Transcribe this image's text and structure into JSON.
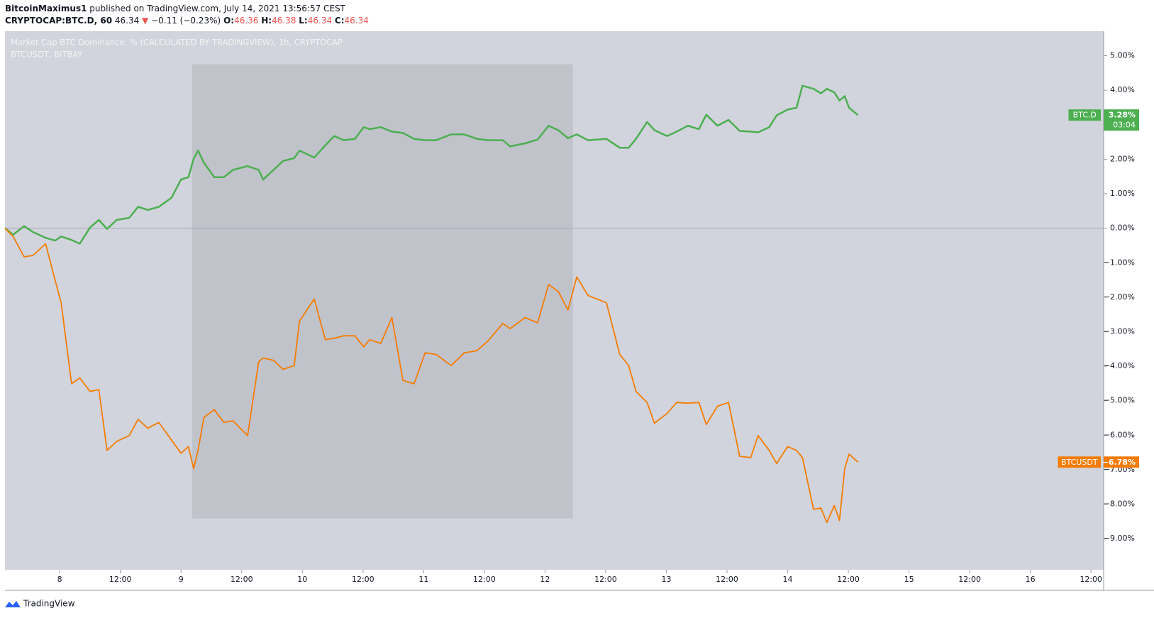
{
  "header": {
    "author": "BitcoinMaximus1",
    "published": "published on TradingView.com, July 14, 2021 13:56:57 CEST",
    "symbol": "CRYPTOCAP:BTC.D, 60",
    "last": "46.34",
    "change": "−0.11 (−0.23%)",
    "ohlc": [
      {
        "label": "O:",
        "value": "46.36"
      },
      {
        "label": "H:",
        "value": "46.38"
      },
      {
        "label": "L:",
        "value": "46.34"
      },
      {
        "label": "C:",
        "value": "46.34"
      }
    ],
    "legend": [
      "Market Cap BTC Dominance, % (CALCULATED BY TRADINGVIEW), 1h, CRYPTOCAP",
      "BTCUSDT, BITBAY"
    ]
  },
  "footer": {
    "brand": "TradingView"
  },
  "chart_data": {
    "type": "line",
    "x": [
      7.549,
      7.616,
      7.707,
      7.78,
      7.884,
      7.963,
      8.012,
      8.098,
      8.165,
      8.25,
      8.323,
      8.39,
      8.47,
      8.573,
      8.646,
      8.726,
      8.817,
      8.921,
      9,
      9.061,
      9.104,
      9.14,
      9.189,
      9.274,
      9.354,
      9.427,
      9.549,
      9.64,
      9.677,
      9.762,
      9.841,
      9.933,
      9.976,
      10.098,
      10.189,
      10.262,
      10.341,
      10.433,
      10.506,
      10.555,
      10.646,
      10.738,
      10.829,
      10.921,
      11.012,
      11.104,
      11.226,
      11.335,
      11.439,
      11.53,
      11.652,
      11.713,
      11.835,
      11.939,
      12.03,
      12.11,
      12.189,
      12.262,
      12.354,
      12.506,
      12.616,
      12.689,
      12.75,
      12.841,
      12.902,
      13.006,
      13.085,
      13.177,
      13.268,
      13.329,
      13.421,
      13.512,
      13.604,
      13.695,
      13.756,
      13.848,
      13.909,
      14,
      14.073,
      14.122,
      14.213,
      14.274,
      14.323,
      14.384,
      14.427,
      14.47,
      14.506,
      14.579
    ],
    "series": [
      {
        "name": "BTC.D",
        "color": "#4caf50",
        "countdown": "03:04",
        "last_value": {
          "value": 3.28,
          "label": "3.28%"
        },
        "values": [
          0,
          -0.19,
          0.06,
          -0.11,
          -0.28,
          -0.36,
          -0.24,
          -0.34,
          -0.45,
          0.02,
          0.24,
          -0.02,
          0.24,
          0.3,
          0.62,
          0.53,
          0.62,
          0.88,
          1.41,
          1.48,
          2.01,
          2.25,
          1.9,
          1.48,
          1.48,
          1.69,
          1.8,
          1.69,
          1.41,
          1.69,
          1.95,
          2.03,
          2.25,
          2.05,
          2.4,
          2.67,
          2.55,
          2.59,
          2.93,
          2.87,
          2.93,
          2.8,
          2.76,
          2.59,
          2.55,
          2.55,
          2.72,
          2.72,
          2.59,
          2.55,
          2.55,
          2.37,
          2.46,
          2.57,
          2.97,
          2.84,
          2.61,
          2.72,
          2.55,
          2.59,
          2.33,
          2.33,
          2.59,
          3.08,
          2.84,
          2.67,
          2.8,
          2.97,
          2.87,
          3.29,
          2.97,
          3.14,
          2.82,
          2.8,
          2.78,
          2.93,
          3.27,
          3.44,
          3.49,
          4.13,
          4.04,
          3.91,
          4.04,
          3.94,
          3.7,
          3.83,
          3.49,
          3.28
        ]
      },
      {
        "name": "BTCUSDT",
        "color": "#f57c00",
        "last_value": {
          "value": -6.78,
          "label": "−6.78%"
        },
        "values": [
          0,
          -0.24,
          -0.83,
          -0.79,
          -0.45,
          -1.52,
          -2.16,
          -4.51,
          -4.34,
          -4.73,
          -4.68,
          -6.44,
          -6.18,
          -6.01,
          -5.54,
          -5.8,
          -5.63,
          -6.14,
          -6.52,
          -6.33,
          -6.97,
          -6.44,
          -5.48,
          -5.26,
          -5.63,
          -5.58,
          -6.01,
          -3.87,
          -3.76,
          -3.83,
          -4.09,
          -3.98,
          -2.7,
          -2.05,
          -3.23,
          -3.19,
          -3.12,
          -3.12,
          -3.44,
          -3.23,
          -3.34,
          -2.59,
          -4.41,
          -4.51,
          -3.61,
          -3.66,
          -3.98,
          -3.61,
          -3.55,
          -3.27,
          -2.76,
          -2.91,
          -2.59,
          -2.74,
          -1.63,
          -1.84,
          -2.37,
          -1.41,
          -1.95,
          -2.16,
          -3.66,
          -3.98,
          -4.73,
          -5.05,
          -5.65,
          -5.37,
          -5.05,
          -5.07,
          -5.05,
          -5.69,
          -5.16,
          -5.05,
          -6.61,
          -6.65,
          -6.01,
          -6.44,
          -6.82,
          -6.33,
          -6.44,
          -6.65,
          -8.15,
          -8.11,
          -8.53,
          -8.04,
          -8.47,
          -6.97,
          -6.55,
          -6.78
        ]
      }
    ],
    "shaded_region": {
      "x": [
        9.09,
        12.23
      ],
      "y": [
        -8.41,
        4.75
      ]
    },
    "xlim": [
      7.549,
      16.604
    ],
    "ylim": [
      -9.9,
      5.71
    ],
    "xticks": [
      8,
      {
        "value": 8.5,
        "label": "12:00"
      },
      9,
      {
        "value": 9.5,
        "label": "12:00"
      },
      10,
      {
        "value": 10.5,
        "label": "12:00"
      },
      11,
      {
        "value": 11.5,
        "label": "12:00"
      },
      12,
      {
        "value": 12.5,
        "label": "12:00"
      },
      13,
      {
        "value": 13.5,
        "label": "12:00"
      },
      14,
      {
        "value": 14.5,
        "label": "12:00"
      },
      15,
      {
        "value": 15.5,
        "label": "12:00"
      },
      16,
      {
        "value": 16.5,
        "label": "12:00"
      }
    ],
    "yticks": [
      {
        "value": 5,
        "label": "5.00%"
      },
      {
        "value": 4,
        "label": "4.00%"
      },
      {
        "value": 3,
        "label": "3.00%"
      },
      {
        "value": 2,
        "label": "2.00%"
      },
      {
        "value": 1,
        "label": "1.00%"
      },
      {
        "value": 0,
        "label": "0.00%"
      },
      {
        "value": -1,
        "label": "−1.00%"
      },
      {
        "value": -2,
        "label": "−2.00%"
      },
      {
        "value": -3,
        "label": "−3.00%"
      },
      {
        "value": -4,
        "label": "−4.00%"
      },
      {
        "value": -5,
        "label": "−5.00%"
      },
      {
        "value": -6,
        "label": "−6.00%"
      },
      {
        "value": -7,
        "label": "−7.00%"
      },
      {
        "value": -8,
        "label": "−8.00%"
      },
      {
        "value": -9,
        "label": "−9.00%"
      }
    ]
  }
}
